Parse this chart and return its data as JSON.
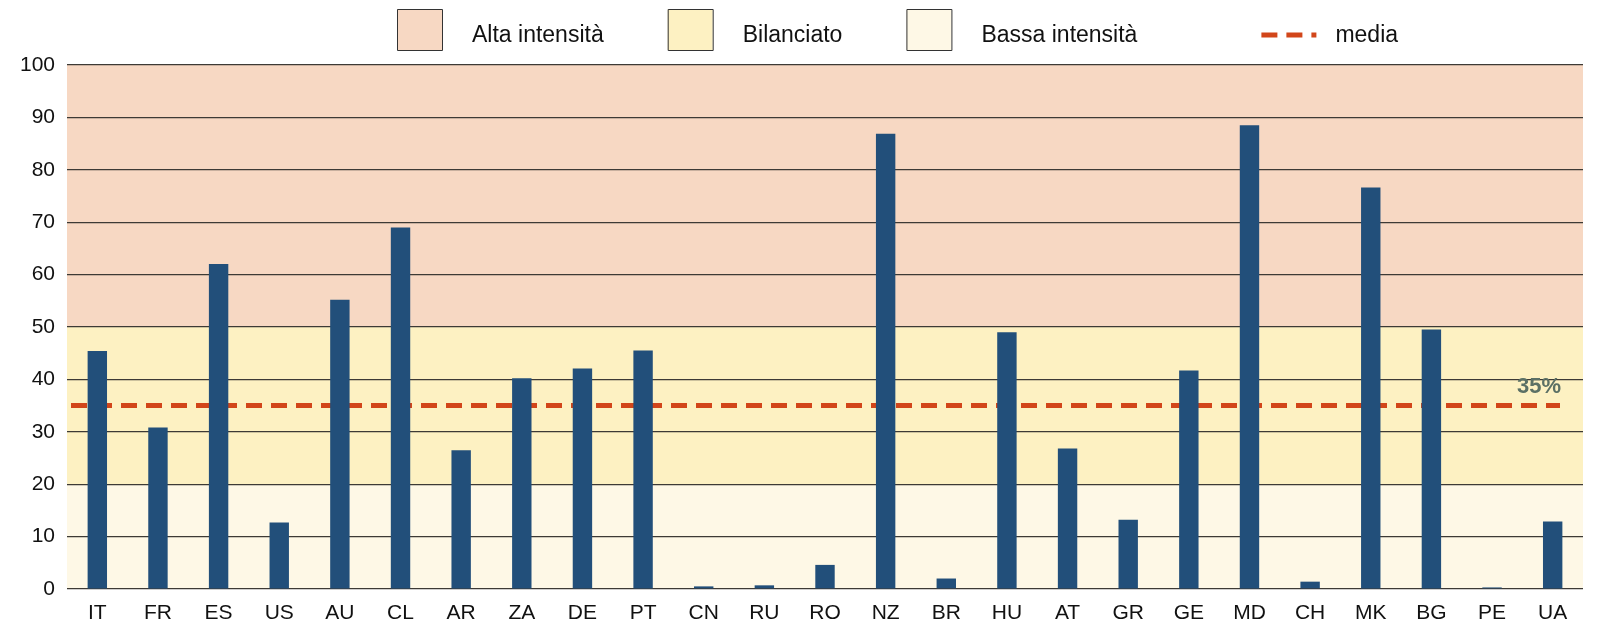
{
  "chart_data": {
    "type": "bar",
    "categories": [
      "IT",
      "FR",
      "ES",
      "US",
      "AU",
      "CL",
      "AR",
      "ZA",
      "DE",
      "PT",
      "CN",
      "RU",
      "RO",
      "NZ",
      "BR",
      "HU",
      "AT",
      "GR",
      "GE",
      "MD",
      "CH",
      "MK",
      "BG",
      "PE",
      "UA"
    ],
    "values": [
      45.4,
      30.8,
      62.0,
      12.7,
      55.2,
      69.0,
      26.5,
      40.2,
      42.1,
      45.5,
      0.5,
      0.7,
      4.6,
      86.9,
      2.0,
      49.0,
      26.8,
      13.2,
      41.7,
      88.5,
      1.4,
      76.6,
      49.5,
      0.3,
      12.9
    ],
    "color": "#224f7a",
    "ylim": [
      0,
      100
    ],
    "yticks": [
      0,
      10,
      20,
      30,
      40,
      50,
      60,
      70,
      80,
      90,
      100
    ],
    "grid": "y",
    "legend": "top",
    "bands": [
      {
        "axis": "y",
        "from": 50,
        "to": 100,
        "label": "Alta intensità",
        "color": "#f7d8c3"
      },
      {
        "axis": "y",
        "from": 20,
        "to": 50,
        "label": "Bilanciato",
        "color": "#fdf1c2"
      },
      {
        "axis": "y",
        "from": 0,
        "to": 20,
        "label": "Bassa intensità",
        "color": "#fef8e6"
      }
    ],
    "ref_lines": [
      {
        "axis": "y",
        "value": 35,
        "label": "media",
        "color": "#d2461a",
        "line_style": "dashed"
      }
    ],
    "annotations": [
      {
        "text": "35%",
        "y": 35
      }
    ]
  }
}
